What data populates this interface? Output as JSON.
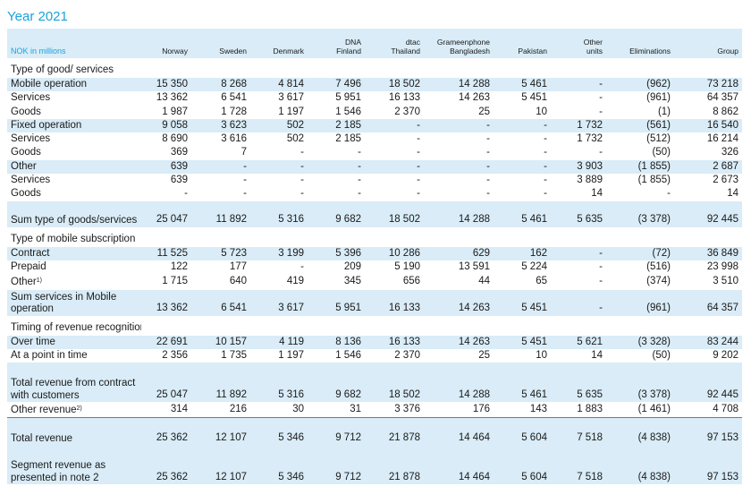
{
  "title": "Year 2021",
  "columns": [
    "NOK in millions",
    "Norway",
    "Sweden",
    "Denmark",
    "DNA Finland",
    "dtac Thailand",
    "Grameenphone Bangladesh",
    "Pakistan",
    "Other units",
    "Eliminations",
    "Group"
  ],
  "rows": [
    {
      "label": "Type of good/ services",
      "values": [],
      "style": "section"
    },
    {
      "label": "Mobile operation",
      "values": [
        "15 350",
        "8 268",
        "4 814",
        "7 496",
        "18 502",
        "14 288",
        "5 461",
        "-",
        "(962)",
        "73 218"
      ],
      "style": "blue"
    },
    {
      "label": "Services",
      "values": [
        "13 362",
        "6 541",
        "3 617",
        "5 951",
        "16 133",
        "14 263",
        "5 451",
        "-",
        "(961)",
        "64 357"
      ],
      "style": ""
    },
    {
      "label": "Goods",
      "values": [
        "1 987",
        "1 728",
        "1 197",
        "1 546",
        "2 370",
        "25",
        "10",
        "-",
        "(1)",
        "8 862"
      ],
      "style": ""
    },
    {
      "label": "Fixed operation",
      "values": [
        "9 058",
        "3 623",
        "502",
        "2 185",
        "-",
        "-",
        "-",
        "1 732",
        "(561)",
        "16 540"
      ],
      "style": "blue"
    },
    {
      "label": "Services",
      "values": [
        "8 690",
        "3 616",
        "502",
        "2 185",
        "-",
        "-",
        "-",
        "1 732",
        "(512)",
        "16 214"
      ],
      "style": ""
    },
    {
      "label": "Goods",
      "values": [
        "369",
        "7",
        "-",
        "-",
        "-",
        "-",
        "-",
        "-",
        "(50)",
        "326"
      ],
      "style": ""
    },
    {
      "label": "Other",
      "values": [
        "639",
        "-",
        "-",
        "-",
        "-",
        "-",
        "-",
        "3 903",
        "(1 855)",
        "2 687"
      ],
      "style": "blue"
    },
    {
      "label": "Services",
      "values": [
        "639",
        "-",
        "-",
        "-",
        "-",
        "-",
        "-",
        "3 889",
        "(1 855)",
        "2 673"
      ],
      "style": ""
    },
    {
      "label": "Goods",
      "values": [
        "-",
        "-",
        "-",
        "-",
        "-",
        "-",
        "-",
        "14",
        "-",
        "14"
      ],
      "style": ""
    },
    {
      "label": "Sum type of goods/services",
      "values": [
        "25 047",
        "11 892",
        "5 316",
        "9 682",
        "18 502",
        "14 288",
        "5 461",
        "5 635",
        "(3 378)",
        "92 445"
      ],
      "style": "blue sum"
    },
    {
      "label": "Type of mobile subscription",
      "values": [],
      "style": "section"
    },
    {
      "label": "Contract",
      "values": [
        "11 525",
        "5 723",
        "3 199",
        "5 396",
        "10 286",
        "629",
        "162",
        "-",
        "(72)",
        "36 849"
      ],
      "style": "blue"
    },
    {
      "label": "Prepaid",
      "values": [
        "122",
        "177",
        "-",
        "209",
        "5 190",
        "13 591",
        "5 224",
        "-",
        "(516)",
        "23 998"
      ],
      "style": ""
    },
    {
      "label": "Other",
      "sup": "1)",
      "values": [
        "1 715",
        "640",
        "419",
        "345",
        "656",
        "44",
        "65",
        "-",
        "(374)",
        "3 510"
      ],
      "style": ""
    },
    {
      "label": "Sum services in Mobile operation",
      "values": [
        "13 362",
        "6 541",
        "3 617",
        "5 951",
        "16 133",
        "14 263",
        "5 451",
        "-",
        "(961)",
        "64 357"
      ],
      "style": "blue sum"
    },
    {
      "label": "Timing of revenue recognition",
      "values": [],
      "style": "section"
    },
    {
      "label": "Over time",
      "values": [
        "22 691",
        "10 157",
        "4 119",
        "8 136",
        "16 133",
        "14 263",
        "5 451",
        "5 621",
        "(3 328)",
        "83 244"
      ],
      "style": "blue"
    },
    {
      "label": "At a point in time",
      "values": [
        "2 356",
        "1 735",
        "1 197",
        "1 546",
        "2 370",
        "25",
        "10",
        "14",
        "(50)",
        "9 202"
      ],
      "style": ""
    },
    {
      "label": "Total revenue from contract with customers",
      "values": [
        "25 047",
        "11 892",
        "5 316",
        "9 682",
        "18 502",
        "14 288",
        "5 461",
        "5 635",
        "(3 378)",
        "92 445"
      ],
      "style": "blue sum"
    },
    {
      "label": "Other revenue",
      "sup": "2)",
      "values": [
        "314",
        "216",
        "30",
        "31",
        "3 376",
        "176",
        "143",
        "1 883",
        "(1 461)",
        "4 708"
      ],
      "style": "bb"
    },
    {
      "label": "Total revenue",
      "values": [
        "25 362",
        "12 107",
        "5 346",
        "9 712",
        "21 878",
        "14 464",
        "5 604",
        "7 518",
        "(4 838)",
        "97 153"
      ],
      "style": "blue total"
    },
    {
      "label": "Segment revenue as presented in note 2",
      "values": [
        "25 362",
        "12 107",
        "5 346",
        "9 712",
        "21 878",
        "14 464",
        "5 604",
        "7 518",
        "(4 838)",
        "97 153"
      ],
      "style": "blue seg"
    }
  ]
}
